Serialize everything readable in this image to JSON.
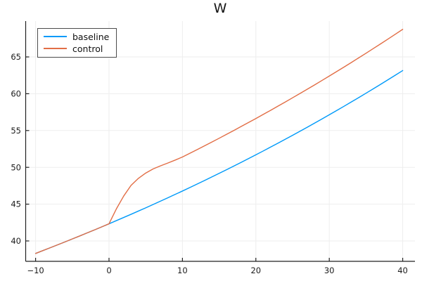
{
  "chart_data": {
    "type": "line",
    "title": "W",
    "xlabel": "",
    "ylabel": "",
    "grid": true,
    "legend_position": "top-left",
    "xlim": [
      -11.35,
      41.67
    ],
    "ylim": [
      37.23,
      69.87
    ],
    "xticks": {
      "values": [
        -10,
        0,
        10,
        20,
        30,
        40
      ],
      "labels": [
        "−10",
        "0",
        "10",
        "20",
        "30",
        "40"
      ]
    },
    "yticks": {
      "values": [
        40,
        45,
        50,
        55,
        60,
        65
      ],
      "labels": [
        "40",
        "45",
        "50",
        "55",
        "60",
        "65"
      ]
    },
    "x": [
      -10,
      -9,
      -8,
      -7,
      -6,
      -5,
      -4,
      -3,
      -2,
      -1,
      0,
      1,
      2,
      3,
      4,
      5,
      6,
      7,
      8,
      9,
      10,
      11,
      12,
      13,
      14,
      15,
      16,
      17,
      18,
      19,
      20,
      21,
      22,
      23,
      24,
      25,
      26,
      27,
      28,
      29,
      30,
      31,
      32,
      33,
      34,
      35,
      36,
      37,
      38,
      39,
      40
    ],
    "series": [
      {
        "name": "baseline",
        "color": "#009af9",
        "values": [
          38.3,
          38.69,
          39.08,
          39.47,
          39.87,
          40.27,
          40.67,
          41.08,
          41.49,
          41.91,
          42.33,
          42.76,
          43.19,
          43.62,
          44.06,
          44.5,
          44.95,
          45.4,
          45.86,
          46.32,
          46.78,
          47.25,
          47.73,
          48.21,
          48.69,
          49.18,
          49.67,
          50.17,
          50.68,
          51.19,
          51.7,
          52.22,
          52.75,
          53.28,
          53.81,
          54.35,
          54.9,
          55.45,
          56.01,
          56.57,
          57.14,
          57.71,
          58.29,
          58.88,
          59.47,
          60.07,
          60.67,
          61.28,
          61.9,
          62.52,
          63.15
        ]
      },
      {
        "name": "control",
        "color": "#e26e46",
        "values": [
          38.3,
          38.69,
          39.08,
          39.47,
          39.87,
          40.27,
          40.67,
          41.08,
          41.49,
          41.91,
          42.33,
          44.35,
          46.1,
          47.55,
          48.5,
          49.22,
          49.78,
          50.2,
          50.58,
          50.98,
          51.4,
          51.9,
          52.41,
          52.92,
          53.43,
          53.95,
          54.48,
          55.01,
          55.55,
          56.09,
          56.63,
          57.19,
          57.74,
          58.31,
          58.87,
          59.45,
          60.03,
          60.61,
          61.2,
          61.8,
          62.4,
          63.01,
          63.62,
          64.24,
          64.87,
          65.5,
          66.14,
          66.78,
          67.43,
          68.09,
          68.75
        ]
      }
    ],
    "colors": {
      "background": "#ffffff",
      "grid": "#eeeeee",
      "spine": "#222222",
      "tick_text": "#1b1b1b",
      "legend_border": "#4c4c4c"
    }
  }
}
